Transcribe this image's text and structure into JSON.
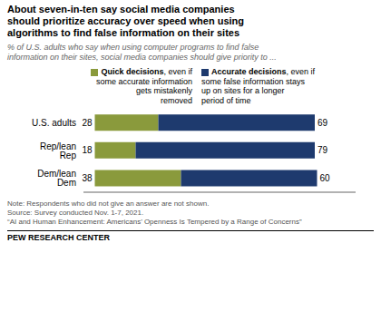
{
  "chart_data": {
    "type": "bar",
    "orientation": "horizontal",
    "stacked": true,
    "data_labels": true,
    "tick_labels": "y",
    "title": "About seven-in-ten say social media companies\nshould prioritize accuracy over speed when using\nalgorithms to find false information on their sites",
    "subtitle": "% of U.S. adults who say when using computer programs to find false\ninformation on their sites, social media companies should give priority to ...",
    "categories": [
      "U.S. adults",
      "Rep/lean Rep",
      "Dem/lean Dem"
    ],
    "series": [
      {
        "name": "Quick decisions",
        "color": "#8a9a3c",
        "values": [
          28,
          18,
          38
        ]
      },
      {
        "name": "Accurate decisions",
        "color": "#1e3a6e",
        "values": [
          69,
          79,
          60
        ]
      }
    ],
    "annotations": [
      ", even if\nsome accurate information\ngets mistakenly\nremoved",
      ", even if\nsome false information stays\nup on sites for a longer\nperiod of time"
    ],
    "xlim": [
      -5,
      115
    ],
    "notes": [
      "Note: Respondents who did not give an answer are not shown.",
      "Source: Survey conducted Nov. 1-7, 2021.",
      "“AI and Human Enhancement: Americans’ Openness Is Tempered by a Range of Concerns”"
    ],
    "footer": "PEW RESEARCH CENTER"
  }
}
